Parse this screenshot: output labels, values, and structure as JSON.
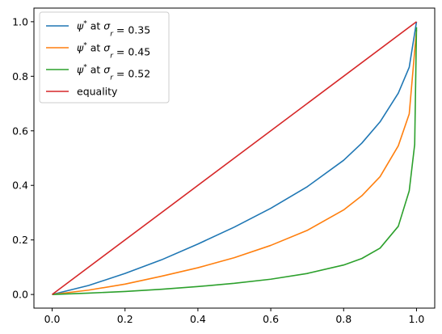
{
  "chart_data": {
    "type": "line",
    "title": "",
    "xlabel": "",
    "ylabel": "",
    "xlim": [
      -0.05,
      1.05
    ],
    "ylim": [
      -0.05,
      1.05
    ],
    "grid": false,
    "legend_position": "top-left",
    "x_ticks": [
      "0.0",
      "0.2",
      "0.4",
      "0.6",
      "0.8",
      "1.0"
    ],
    "y_ticks": [
      "0.0",
      "0.2",
      "0.4",
      "0.6",
      "0.8",
      "1.0"
    ],
    "series": [
      {
        "name": "ψ* at σr = 0.35",
        "legend": {
          "psi": "ψ",
          "star": "*",
          "at": " at ",
          "sigma": "σ",
          "sub": "r",
          "rest": " = 0.35"
        },
        "color": "#1f77b4",
        "x": [
          0,
          0.1,
          0.2,
          0.3,
          0.4,
          0.5,
          0.6,
          0.7,
          0.8,
          0.85,
          0.9,
          0.95,
          0.98,
          1.0
        ],
        "y": [
          0,
          0.033,
          0.077,
          0.127,
          0.185,
          0.247,
          0.316,
          0.395,
          0.492,
          0.555,
          0.633,
          0.738,
          0.833,
          1.0
        ]
      },
      {
        "name": "ψ* at σr = 0.45",
        "legend": {
          "psi": "ψ",
          "star": "*",
          "at": " at ",
          "sigma": "σ",
          "sub": "r",
          "rest": " = 0.45"
        },
        "color": "#ff7f0e",
        "x": [
          0,
          0.1,
          0.2,
          0.3,
          0.4,
          0.5,
          0.6,
          0.7,
          0.8,
          0.85,
          0.9,
          0.95,
          0.98,
          1.0
        ],
        "y": [
          0,
          0.016,
          0.038,
          0.067,
          0.098,
          0.135,
          0.18,
          0.235,
          0.31,
          0.362,
          0.432,
          0.545,
          0.662,
          0.97
        ]
      },
      {
        "name": "ψ* at σr = 0.52",
        "legend": {
          "psi": "ψ",
          "star": "*",
          "at": " at ",
          "sigma": "σ",
          "sub": "r",
          "rest": " = 0.52"
        },
        "color": "#2ca02c",
        "x": [
          0,
          0.1,
          0.2,
          0.3,
          0.4,
          0.5,
          0.6,
          0.7,
          0.8,
          0.85,
          0.9,
          0.95,
          0.98,
          0.995,
          1.0
        ],
        "y": [
          0,
          0.005,
          0.011,
          0.019,
          0.029,
          0.041,
          0.056,
          0.077,
          0.108,
          0.132,
          0.17,
          0.25,
          0.38,
          0.55,
          0.98
        ]
      },
      {
        "name": "equality",
        "color": "#d62728",
        "x": [
          0,
          1
        ],
        "y": [
          0,
          1
        ]
      }
    ]
  }
}
